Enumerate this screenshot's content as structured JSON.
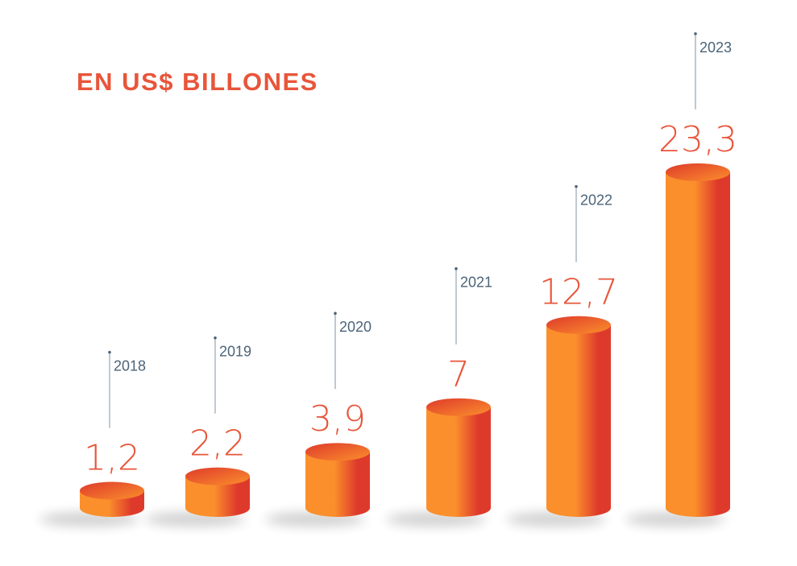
{
  "colors": {
    "accent": "#e8553a",
    "bar_light": "#fb8f2c",
    "bar_dark": "#de3a2c",
    "label_blue": "#4c6478",
    "leader_line": "#7f93a3"
  },
  "chart_data": {
    "type": "bar",
    "title": "EN US$ BILLONES",
    "xlabel": "",
    "ylabel": "",
    "categories": [
      "2018",
      "2019",
      "2020",
      "2021",
      "2022",
      "2023"
    ],
    "values": [
      1.2,
      2.2,
      3.9,
      7,
      12.7,
      23.3
    ],
    "value_labels": [
      "1,2",
      "2,2",
      "3,9",
      "7",
      "12,7",
      "23,3"
    ],
    "grid": false,
    "legend": "none"
  }
}
